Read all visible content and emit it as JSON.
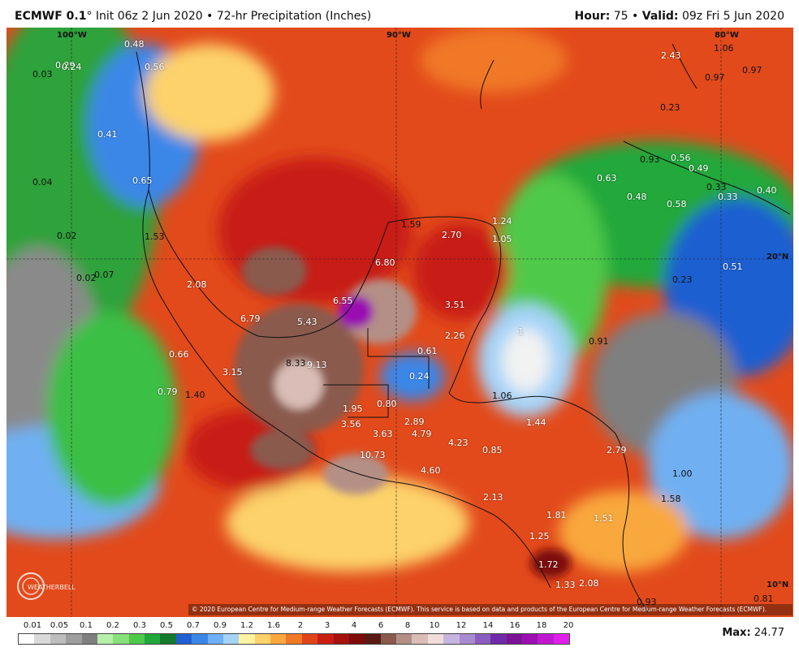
{
  "header": {
    "model": "ECMWF 0.1",
    "degree": "°",
    "init_text": "Init 06z 2 Jun 2020",
    "bullet": "•",
    "product": "72-hr Precipitation (Inches)",
    "hour_label": "Hour:",
    "hour_value": "75",
    "valid_label": "Valid:",
    "valid_value": "09z Fri 5 Jun 2020"
  },
  "coords": {
    "lon100": "100°W",
    "lon90": "90°W",
    "lon80": "80°W",
    "lat20": "20°N",
    "lat10": "10°N"
  },
  "values": [
    {
      "text": "0.48"
    },
    {
      "text": "0.29"
    },
    {
      "text": "0.24"
    },
    {
      "text": "0.03"
    },
    {
      "text": "0.56"
    },
    {
      "text": "0.41"
    },
    {
      "text": "0.04"
    },
    {
      "text": "0.65"
    },
    {
      "text": "0.02"
    },
    {
      "text": "1.53"
    },
    {
      "text": "0.02"
    },
    {
      "text": "0.07"
    },
    {
      "text": "2.08"
    },
    {
      "text": "6.79"
    },
    {
      "text": "5.43"
    },
    {
      "text": "0.66"
    },
    {
      "text": "3.15"
    },
    {
      "text": "8.33"
    },
    {
      "text": "9.13"
    },
    {
      "text": "0.79"
    },
    {
      "text": "1.40"
    },
    {
      "text": "1.59"
    },
    {
      "text": "2.70"
    },
    {
      "text": "1.24"
    },
    {
      "text": "1.05"
    },
    {
      "text": "6.80"
    },
    {
      "text": "6.55"
    },
    {
      "text": "3.51"
    },
    {
      "text": "2.26"
    },
    {
      "text": "0.61"
    },
    {
      "text": "0.24"
    },
    {
      "text": "1.95"
    },
    {
      "text": "0.80"
    },
    {
      "text": "3.56"
    },
    {
      "text": "3.63"
    },
    {
      "text": "2.89"
    },
    {
      "text": "4.79"
    },
    {
      "text": "10.73"
    },
    {
      "text": "4.23"
    },
    {
      "text": "0.85"
    },
    {
      "text": "4.60"
    },
    {
      "text": "1.06"
    },
    {
      "text": "1.44"
    },
    {
      "text": "2.79"
    },
    {
      "text": "1.00"
    },
    {
      "text": "1.58"
    },
    {
      "text": "2.13"
    },
    {
      "text": "1.81"
    },
    {
      "text": "1.25"
    },
    {
      "text": "1.51"
    },
    {
      "text": "1.72"
    },
    {
      "text": "1.33"
    },
    {
      "text": "2.08"
    },
    {
      "text": "0.93"
    },
    {
      "text": "0.81"
    },
    {
      "text": "2.43"
    },
    {
      "text": "1.06"
    },
    {
      "text": "0.97"
    },
    {
      "text": "0.97"
    },
    {
      "text": "0.23"
    },
    {
      "text": "0.93"
    },
    {
      "text": "0.56"
    },
    {
      "text": "0.49"
    },
    {
      "text": "0.63"
    },
    {
      "text": "0.48"
    },
    {
      "text": "0.58"
    },
    {
      "text": "0.33"
    },
    {
      "text": "0.33"
    },
    {
      "text": "0.40"
    },
    {
      "text": "0.51"
    },
    {
      "text": "0.23"
    },
    {
      "text": "0.91"
    },
    {
      "text": "1"
    }
  ],
  "copyright": "© 2020 European Centre for Medium-range Weather Forecasts (ECMWF). This service is based on data and products of the European Centre for Medium-range Weather Forecasts (ECMWF).",
  "logo_text": "WEATHERBELL",
  "legend": {
    "labels": [
      "0.01",
      "0.05",
      "0.1",
      "0.2",
      "0.3",
      "0.5",
      "0.7",
      "0.9",
      "1.2",
      "1.6",
      "2",
      "3",
      "4",
      "6",
      "8",
      "10",
      "12",
      "14",
      "16",
      "18",
      "20"
    ],
    "colors": [
      "#ffffff",
      "#d9d9d9",
      "#bdbdbd",
      "#9e9e9e",
      "#7f7f7f",
      "#b5f0a8",
      "#88e07a",
      "#4fc94a",
      "#20a83a",
      "#157a2c",
      "#1f5fd1",
      "#3b87e8",
      "#6fb0f2",
      "#a5d3f8",
      "#fff3a3",
      "#fdd26a",
      "#f9a83e",
      "#f07826",
      "#e2441a",
      "#c81e12",
      "#a5110c",
      "#7d0c0a",
      "#5a1a14",
      "#8a5a4d",
      "#b48f86",
      "#d9bdb6",
      "#f0dcd8",
      "#c7b4e0",
      "#a88ad0",
      "#8a5cc0",
      "#6f2aa8",
      "#7a1296",
      "#9a0fb0",
      "#c018d0",
      "#e020e8"
    ]
  },
  "max_label": "Max:",
  "max_value": "24.77"
}
